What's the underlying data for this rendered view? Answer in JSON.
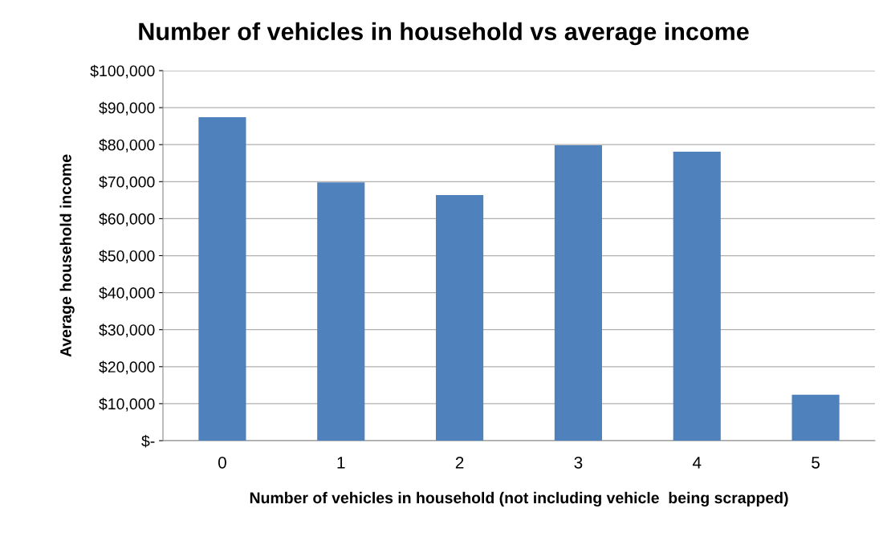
{
  "chart_data": {
    "type": "bar",
    "title": "Number of vehicles in household vs average income",
    "xlabel": "Number of vehicles in household (not including vehicle  being scrapped)",
    "ylabel": "Average household income",
    "categories": [
      "0",
      "1",
      "2",
      "3",
      "4",
      "5"
    ],
    "values": [
      87400,
      69800,
      66400,
      79800,
      78100,
      12400
    ],
    "color": "#4f81bd",
    "ylim": [
      0,
      100000
    ],
    "yticks": [
      {
        "value": 0,
        "label": "$-"
      },
      {
        "value": 10000,
        "label": "$10,000"
      },
      {
        "value": 20000,
        "label": "$20,000"
      },
      {
        "value": 30000,
        "label": "$30,000"
      },
      {
        "value": 40000,
        "label": "$40,000"
      },
      {
        "value": 50000,
        "label": "$50,000"
      },
      {
        "value": 60000,
        "label": "$60,000"
      },
      {
        "value": 70000,
        "label": "$70,000"
      },
      {
        "value": 80000,
        "label": "$80,000"
      },
      {
        "value": 90000,
        "label": "$90,000"
      },
      {
        "value": 100000,
        "label": "$100,000"
      }
    ],
    "grid": "y",
    "legend": false
  }
}
